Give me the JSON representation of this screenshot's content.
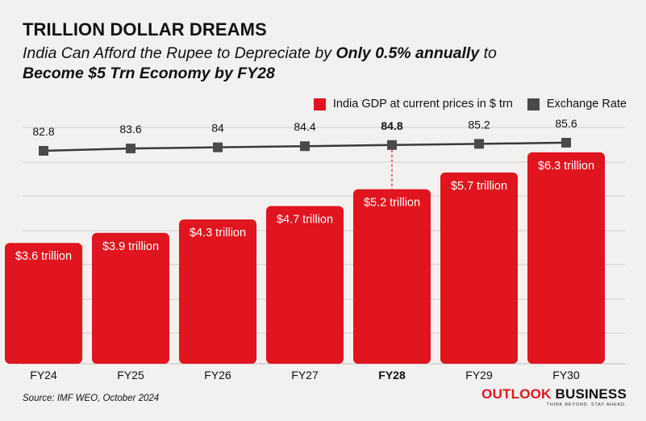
{
  "header": {
    "title": "TRILLION DOLLAR DREAMS",
    "subtitle_part1": "India Can Afford the Rupee to Depreciate by ",
    "subtitle_bold": "Only 0.5% annually",
    "subtitle_part2": " to",
    "subtitle_line2": "Become $5 Trn Economy by FY28"
  },
  "colors": {
    "background": "#f2f1ef",
    "bar": "#e0151f",
    "line": "#3a3a3a",
    "marker": "#4a4a4a",
    "highlight_dotted": "#e8646a"
  },
  "chart_data": {
    "type": "bar",
    "categories": [
      "FY24",
      "FY25",
      "FY26",
      "FY27",
      "FY28",
      "FY29",
      "FY30"
    ],
    "highlight_category": "FY28",
    "series": [
      {
        "name": "India GDP at current prices in $ trn",
        "type": "bar",
        "values": [
          3.6,
          3.9,
          4.3,
          4.7,
          5.2,
          5.7,
          6.3
        ],
        "labels": [
          "$3.6 trillion",
          "$3.9 trillion",
          "$4.3 trillion",
          "$4.7 trillion",
          "$5.2 trillion",
          "$5.7 trillion",
          "$6.3 trillion"
        ]
      },
      {
        "name": "Exchange Rate",
        "type": "line",
        "values": [
          82.8,
          83.6,
          84,
          84.4,
          84.8,
          85.2,
          85.6
        ],
        "labels": [
          "82.8",
          "83.6",
          "84",
          "84.4",
          "84.8",
          "85.2",
          "85.6"
        ]
      }
    ],
    "grid": true,
    "legend_position": "top-right"
  },
  "legend": {
    "gdp_label": "India GDP at current prices in $ trn",
    "fx_label": "Exchange Rate"
  },
  "footer": {
    "source": "Source: IMF WEO, October 2024",
    "brand_outlook": "OUTLOOK",
    "brand_business": "BUSINESS",
    "brand_tagline": "THINK BEYOND. STAY AHEAD."
  }
}
